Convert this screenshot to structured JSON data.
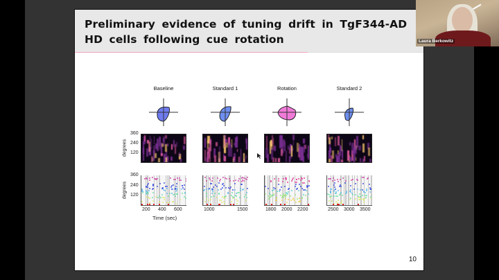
{
  "slide": {
    "title": "Preliminary evidence of tuning drift in TgF344-AD HD cells following cue rotation",
    "page_number": "10",
    "accent_color": "#f1a3bd"
  },
  "figure": {
    "columns": [
      {
        "title": "Baseline",
        "fill": "#6f7cf0",
        "x_ticks": [
          "200",
          "400",
          "600"
        ]
      },
      {
        "title": "Standard 1",
        "fill": "#6f8ff0",
        "x_ticks": [
          "1000",
          "1500"
        ]
      },
      {
        "title": "Rotation",
        "fill": "#f07ad8",
        "x_ticks": [
          "1800",
          "2000",
          "2200"
        ]
      },
      {
        "title": "Standard 2",
        "fill": "#6f8ff0",
        "x_ticks": [
          "2500",
          "3000",
          "3500"
        ]
      }
    ],
    "y_ticks": [
      "360",
      "240",
      "120"
    ],
    "y_label": "degrees",
    "x_label": "Time (sec)"
  },
  "video": {
    "participant_name": "Laura Berkowitz"
  }
}
